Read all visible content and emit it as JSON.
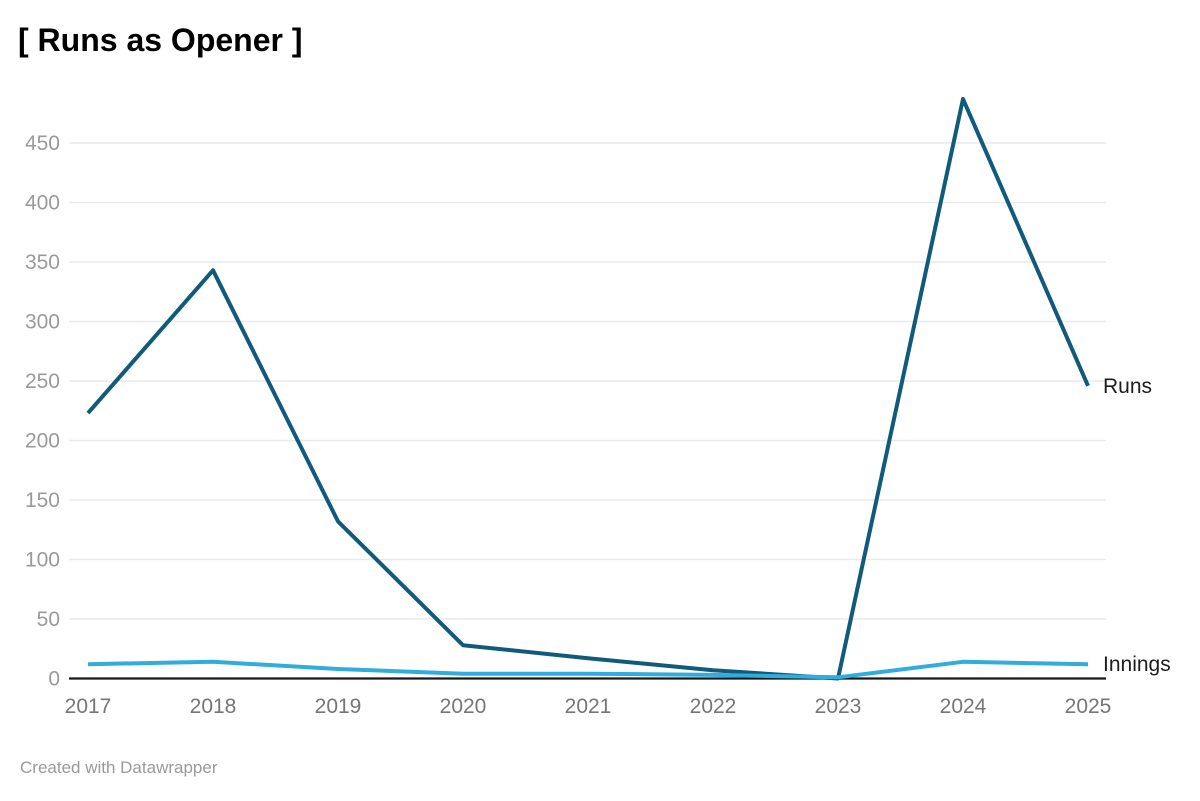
{
  "title": "[ Runs as Opener ]",
  "footer": "Created with Datawrapper",
  "chart_data": {
    "type": "line",
    "title": "[ Runs as Opener ]",
    "xlabel": "",
    "ylabel": "",
    "categories": [
      "2017",
      "2018",
      "2019",
      "2020",
      "2021",
      "2022",
      "2023",
      "2024",
      "2025"
    ],
    "series": [
      {
        "name": "Runs",
        "color": "#105a7c",
        "values": [
          223,
          343,
          132,
          28,
          17,
          7,
          0,
          487,
          246
        ]
      },
      {
        "name": "Innings",
        "color": "#30acdd",
        "values": [
          12,
          14,
          8,
          4,
          4,
          3,
          1,
          14,
          12
        ]
      }
    ],
    "yticks": [
      0,
      50,
      100,
      150,
      200,
      250,
      300,
      350,
      400,
      450
    ],
    "ylim": [
      0,
      490
    ],
    "grid": true,
    "legend_position": "line-end-labels"
  },
  "colors": {
    "runs_line": "#105a7c",
    "innings_line": "#30acdd",
    "gridline": "#eaeaea",
    "axis_line": "#181818",
    "y_tick_label": "#9a9a9a",
    "x_tick_label": "#767676",
    "series_label": "#1d1d1d",
    "title": "#000000",
    "footer": "#9a9a9a",
    "background": "#ffffff"
  }
}
